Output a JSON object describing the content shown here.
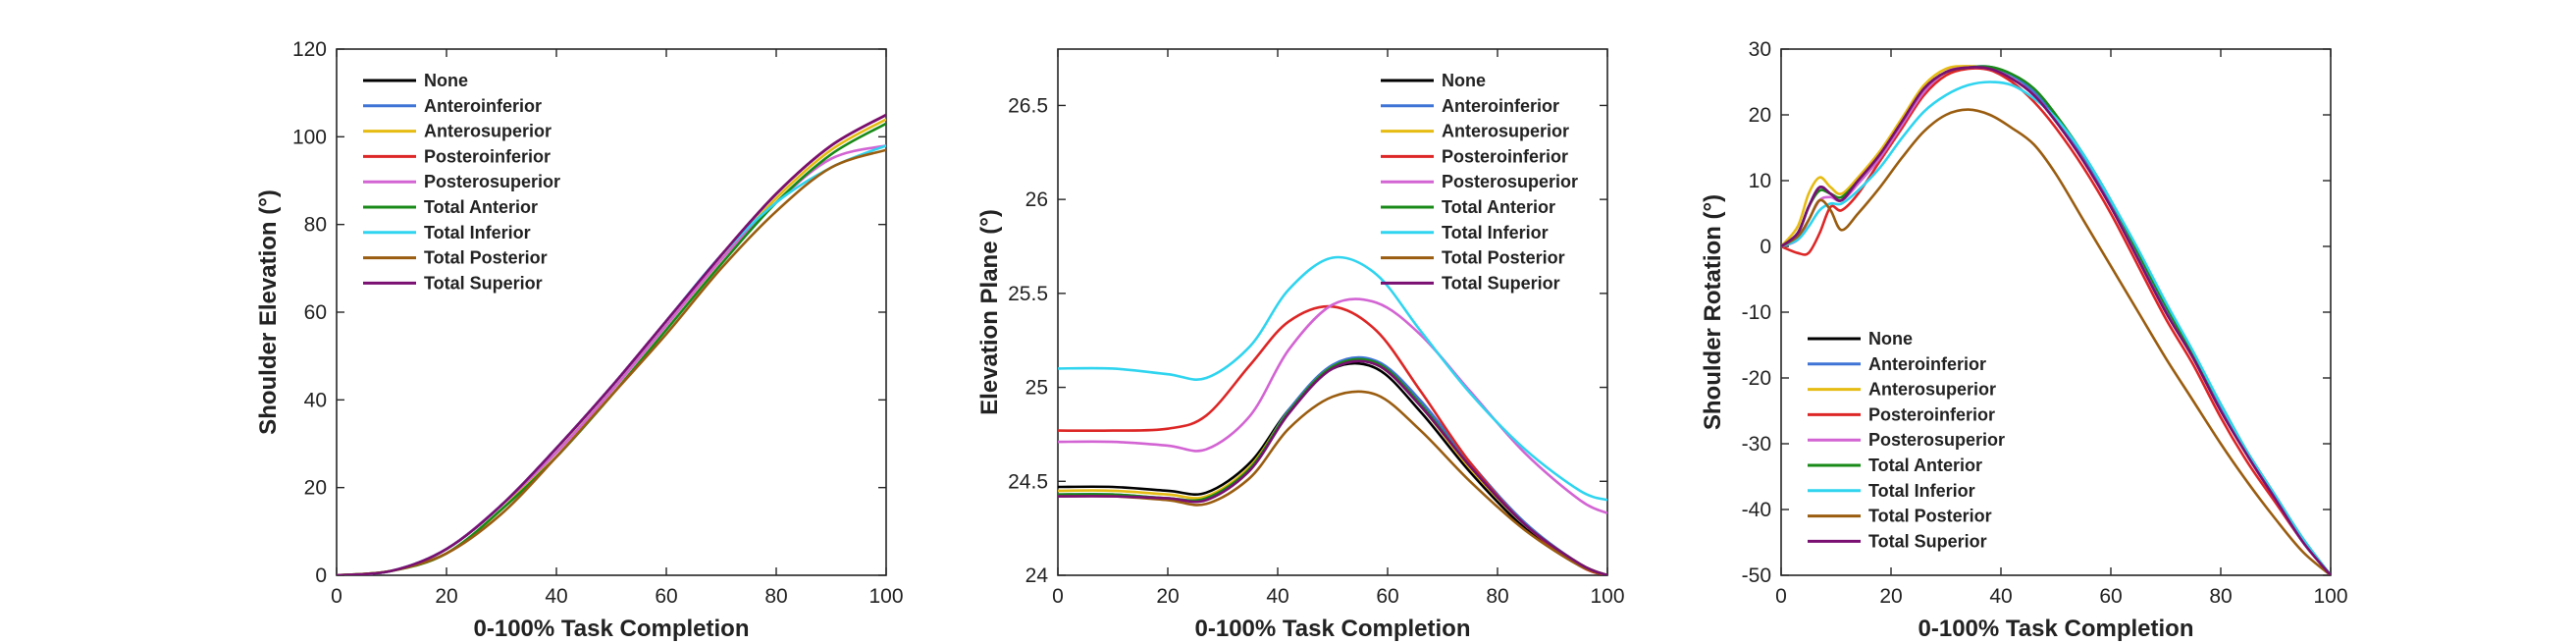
{
  "series_styles": [
    {
      "name": "None",
      "color": "#000000"
    },
    {
      "name": "Anteroinferior",
      "color": "#3f74d6"
    },
    {
      "name": "Anterosuperior",
      "color": "#e6bb12"
    },
    {
      "name": "Posteroinferior",
      "color": "#dd2626"
    },
    {
      "name": "Posterosuperior",
      "color": "#d364d3"
    },
    {
      "name": "Total Anterior",
      "color": "#178a17"
    },
    {
      "name": "Total Inferior",
      "color": "#2fd4ef"
    },
    {
      "name": "Total Posterior",
      "color": "#9a5d10"
    },
    {
      "name": "Total Superior",
      "color": "#7a0f72"
    }
  ],
  "chart_data": [
    {
      "type": "line",
      "xlabel": "0-100% Task Completion",
      "ylabel": "Shoulder Elevation (°)",
      "xlim": [
        0,
        100
      ],
      "ylim": [
        0,
        120
      ],
      "xticks": [
        "0",
        "20",
        "40",
        "60",
        "80",
        "100"
      ],
      "yticks": [
        "0",
        "20",
        "40",
        "60",
        "80",
        "100",
        "120"
      ],
      "legend_position": "top-left",
      "x": [
        0,
        10,
        20,
        30,
        40,
        50,
        60,
        70,
        80,
        90,
        100
      ],
      "series": [
        {
          "name": "None",
          "values": [
            0,
            1,
            6,
            16,
            29,
            43,
            58,
            73,
            87,
            98,
            105
          ]
        },
        {
          "name": "Anteroinferior",
          "values": [
            0,
            1,
            6,
            16,
            29,
            43,
            58,
            73,
            87,
            98,
            105
          ]
        },
        {
          "name": "Anterosuperior",
          "values": [
            0,
            1,
            5,
            15,
            28,
            42,
            57,
            72,
            86,
            97,
            104
          ]
        },
        {
          "name": "Posteroinferior",
          "values": [
            0,
            1,
            6,
            16,
            29,
            43,
            58,
            73,
            87,
            98,
            105
          ]
        },
        {
          "name": "Posterosuperior",
          "values": [
            0,
            1,
            6,
            16,
            28,
            42,
            57,
            72,
            85,
            95,
            98
          ]
        },
        {
          "name": "Total Anterior",
          "values": [
            0,
            1,
            5,
            15,
            27,
            41,
            56,
            71,
            85,
            96,
            103
          ]
        },
        {
          "name": "Total Inferior",
          "values": [
            0,
            1,
            6,
            16,
            29,
            43,
            58,
            73,
            85,
            93,
            98
          ]
        },
        {
          "name": "Total Posterior",
          "values": [
            0,
            1,
            5,
            14,
            27,
            41,
            55,
            70,
            83,
            93,
            97
          ]
        },
        {
          "name": "Total Superior",
          "values": [
            0,
            1,
            6,
            16,
            29,
            43,
            58,
            73,
            87,
            98,
            105
          ]
        }
      ]
    },
    {
      "type": "line",
      "xlabel": "0-100% Task Completion",
      "ylabel": "Elevation Plane (°)",
      "xlim": [
        0,
        100
      ],
      "ylim": [
        24,
        26.8
      ],
      "xticks": [
        "0",
        "20",
        "40",
        "60",
        "80",
        "100"
      ],
      "yticks": [
        "24",
        "24.5",
        "25",
        "25.5",
        "26",
        "26.5"
      ],
      "ytick_values": [
        24,
        24.5,
        25,
        25.5,
        26,
        26.5
      ],
      "legend_position": "top-right",
      "x": [
        0,
        10,
        20,
        27,
        35,
        42,
        50,
        58,
        66,
        75,
        85,
        95,
        100
      ],
      "series": [
        {
          "name": "None",
          "values": [
            24.47,
            24.47,
            24.45,
            24.44,
            24.6,
            24.88,
            25.1,
            25.1,
            24.87,
            24.55,
            24.25,
            24.05,
            24.0
          ]
        },
        {
          "name": "Anteroinferior",
          "values": [
            24.43,
            24.43,
            24.41,
            24.41,
            24.57,
            24.88,
            25.12,
            25.14,
            24.93,
            24.6,
            24.28,
            24.06,
            24.0
          ]
        },
        {
          "name": "Anterosuperior",
          "values": [
            24.45,
            24.45,
            24.43,
            24.42,
            24.58,
            24.87,
            25.11,
            25.12,
            24.9,
            24.57,
            24.27,
            24.06,
            24.0
          ]
        },
        {
          "name": "Posteroinferior",
          "values": [
            24.77,
            24.77,
            24.78,
            24.85,
            25.12,
            25.35,
            25.43,
            25.3,
            24.98,
            24.6,
            24.27,
            24.05,
            24.0
          ]
        },
        {
          "name": "Posterosuperior",
          "values": [
            24.71,
            24.71,
            24.69,
            24.67,
            24.85,
            25.2,
            25.44,
            25.45,
            25.28,
            24.98,
            24.65,
            24.4,
            24.33
          ]
        },
        {
          "name": "Total Anterior",
          "values": [
            24.43,
            24.43,
            24.41,
            24.41,
            24.57,
            24.87,
            25.11,
            25.13,
            24.91,
            24.58,
            24.27,
            24.06,
            24.0
          ]
        },
        {
          "name": "Total Inferior",
          "values": [
            25.1,
            25.1,
            25.07,
            25.05,
            25.22,
            25.52,
            25.69,
            25.6,
            25.3,
            24.97,
            24.67,
            24.45,
            24.4
          ]
        },
        {
          "name": "Total Posterior",
          "values": [
            24.42,
            24.42,
            24.4,
            24.38,
            24.52,
            24.78,
            24.95,
            24.96,
            24.77,
            24.5,
            24.24,
            24.05,
            24.0
          ]
        },
        {
          "name": "Total Superior",
          "values": [
            24.42,
            24.42,
            24.41,
            24.4,
            24.56,
            24.86,
            25.1,
            25.12,
            24.9,
            24.58,
            24.27,
            24.06,
            24.0
          ]
        }
      ]
    },
    {
      "type": "line",
      "xlabel": "0-100% Task Completion",
      "ylabel": "Shoulder Rotation (°)",
      "xlim": [
        0,
        100
      ],
      "ylim": [
        -50,
        30
      ],
      "xticks": [
        "0",
        "20",
        "40",
        "60",
        "80",
        "100"
      ],
      "yticks": [
        "-50",
        "-40",
        "-30",
        "-20",
        "-10",
        "0",
        "10",
        "20",
        "30"
      ],
      "legend_position": "bottom-left",
      "x": [
        0,
        3,
        5,
        7,
        9,
        11,
        14,
        18,
        22,
        26,
        30,
        34,
        38,
        42,
        46,
        50,
        55,
        60,
        65,
        70,
        75,
        80,
        85,
        90,
        95,
        100
      ],
      "series": [
        {
          "name": "None",
          "values": [
            0,
            2,
            6,
            9,
            8,
            7,
            10,
            14,
            19,
            24,
            26.5,
            27.2,
            27,
            25.5,
            23,
            19,
            13,
            6,
            -2,
            -10,
            -17,
            -25,
            -32,
            -38.5,
            -45,
            -50
          ]
        },
        {
          "name": "Anteroinferior",
          "values": [
            0,
            2,
            6,
            9,
            8,
            7,
            10,
            14,
            19,
            24,
            26.5,
            27.2,
            27.3,
            26,
            23.5,
            19.5,
            13.5,
            6.5,
            -1.5,
            -9.5,
            -16.5,
            -24.5,
            -31.5,
            -38,
            -44.5,
            -50
          ]
        },
        {
          "name": "Anterosuperior",
          "values": [
            0,
            3,
            8,
            10.5,
            9,
            8,
            10.5,
            14.5,
            19.5,
            24.5,
            27,
            27.4,
            27,
            25.5,
            23,
            19,
            13,
            6,
            -2,
            -10,
            -17,
            -25,
            -32,
            -38.5,
            -45,
            -50
          ]
        },
        {
          "name": "Posteroinferior",
          "values": [
            0,
            -1,
            -1,
            2,
            6,
            5.5,
            8,
            13,
            18,
            23,
            26,
            27,
            26.8,
            25,
            22,
            18,
            12,
            5,
            -3,
            -11,
            -18,
            -26,
            -33,
            -39,
            -45,
            -50
          ]
        },
        {
          "name": "Posterosuperior",
          "values": [
            0,
            1,
            4,
            7,
            7.5,
            7,
            9.5,
            13.5,
            18.5,
            23.5,
            26.5,
            27.2,
            27,
            25.5,
            23,
            19,
            13,
            6,
            -2,
            -10,
            -17,
            -25,
            -32,
            -38.5,
            -45,
            -50
          ]
        },
        {
          "name": "Total Anterior",
          "values": [
            0,
            2,
            6,
            8.5,
            8,
            7.5,
            10,
            14,
            19,
            24,
            26.5,
            27.2,
            27.3,
            26.2,
            24,
            20,
            14,
            7,
            -1,
            -9,
            -16.5,
            -24,
            -31.5,
            -38,
            -44.5,
            -50
          ]
        },
        {
          "name": "Total Inferior",
          "values": [
            0,
            1,
            3,
            5.5,
            6.5,
            6.5,
            8.5,
            12,
            16.5,
            20.5,
            23,
            24.5,
            25,
            24.5,
            22.5,
            19.5,
            14,
            7,
            -0.5,
            -8.5,
            -16,
            -24,
            -31.5,
            -38,
            -44.5,
            -50
          ]
        },
        {
          "name": "Total Posterior",
          "values": [
            0,
            1.5,
            4,
            7,
            5.5,
            2.5,
            5,
            9,
            13.5,
            17.5,
            20,
            20.8,
            20,
            18,
            15.5,
            11,
            4,
            -3,
            -10,
            -17,
            -23.5,
            -30,
            -36,
            -41.5,
            -46.5,
            -50
          ]
        },
        {
          "name": "Total Superior",
          "values": [
            0,
            2,
            6,
            9,
            8,
            7,
            10,
            14,
            19,
            24,
            26.5,
            27.2,
            27,
            25.5,
            23,
            19,
            13,
            6,
            -2,
            -10,
            -17,
            -25,
            -32,
            -38.5,
            -45,
            -50
          ]
        }
      ]
    }
  ]
}
